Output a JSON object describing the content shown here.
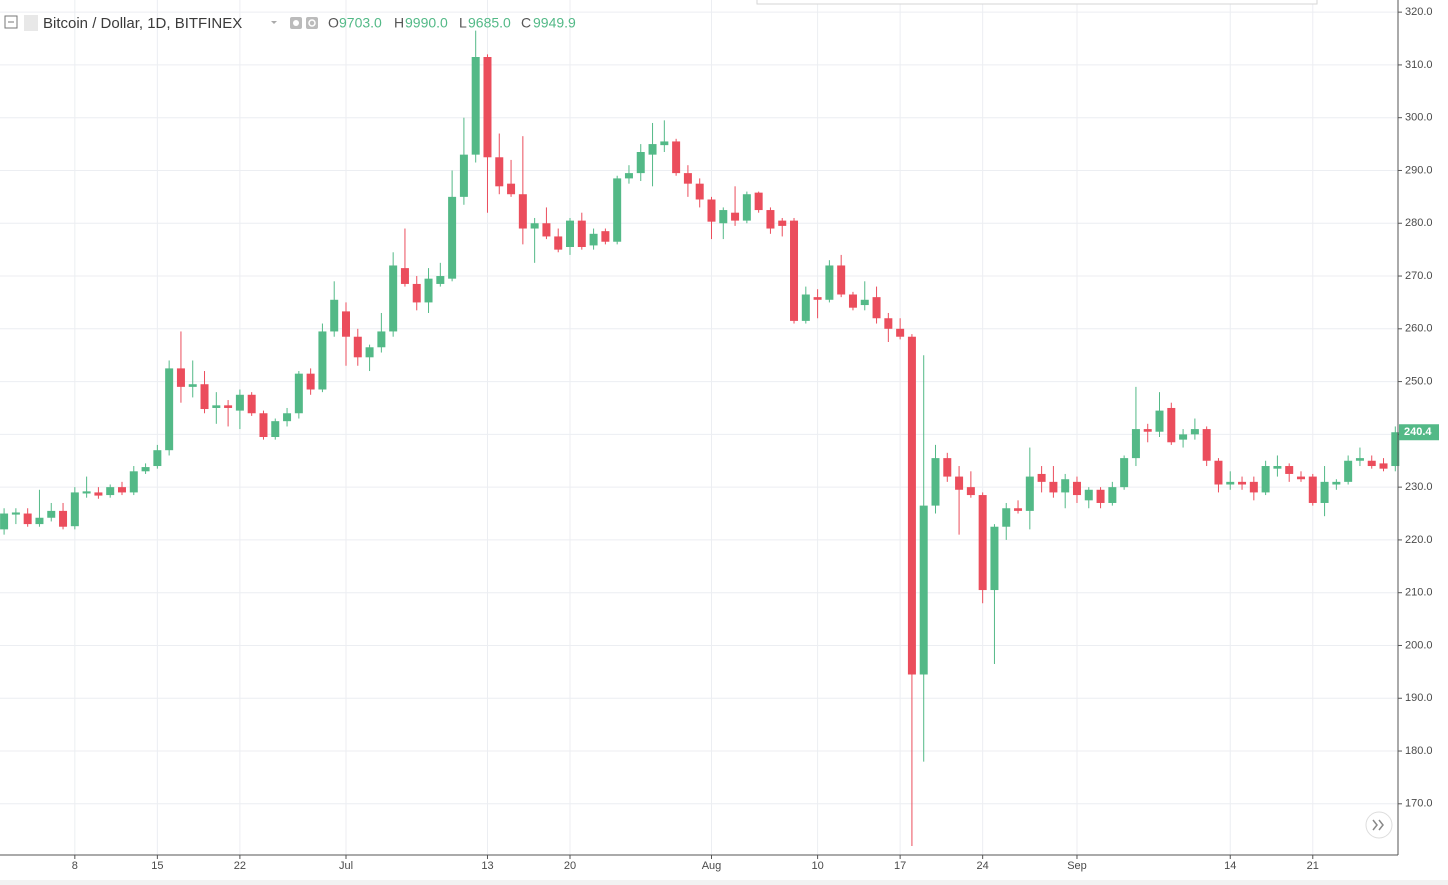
{
  "chart_data": {
    "type": "candlestick",
    "title": "Bitcoin / Dollar, 1D, BITFINEX",
    "header": {
      "o_label": "O",
      "o": "9703.0",
      "h_label": "H",
      "h": "9990.0",
      "l_label": "L",
      "l": "9685.0",
      "c_label": "C",
      "c": "9949.9"
    },
    "categories": [
      null,
      null,
      null,
      null,
      null,
      null,
      "8",
      null,
      null,
      null,
      null,
      null,
      null,
      "15",
      null,
      null,
      null,
      null,
      null,
      null,
      "22",
      null,
      null,
      null,
      null,
      null,
      null,
      null,
      null,
      "Jul",
      null,
      null,
      null,
      null,
      null,
      null,
      null,
      null,
      null,
      null,
      null,
      "13",
      null,
      null,
      null,
      null,
      null,
      null,
      "20",
      null,
      null,
      null,
      null,
      null,
      null,
      null,
      null,
      null,
      null,
      null,
      "Aug",
      null,
      null,
      null,
      null,
      null,
      null,
      null,
      null,
      "10",
      null,
      null,
      null,
      null,
      null,
      null,
      "17",
      null,
      null,
      null,
      null,
      null,
      null,
      "24",
      null,
      null,
      null,
      null,
      null,
      null,
      null,
      "Sep",
      null,
      null,
      null,
      null,
      null,
      null,
      null,
      null,
      null,
      null,
      null,
      null,
      "14",
      null,
      null,
      null,
      null,
      null,
      null,
      "21",
      null,
      null,
      null,
      null,
      null,
      null,
      null
    ],
    "open": [
      222,
      224.8,
      225,
      223,
      224.2,
      225.5,
      222.6,
      228.8,
      229,
      228.5,
      230,
      229,
      233,
      234,
      237,
      252.5,
      249,
      249.5,
      245,
      245.5,
      244.5,
      247.5,
      244,
      239.5,
      242.5,
      244,
      251.5,
      248.5,
      259.5,
      263.3,
      258.5,
      254.6,
      256.5,
      259.5,
      271.5,
      268.5,
      265,
      268.5,
      269.5,
      285,
      293,
      311.5,
      292.5,
      287.5,
      285.5,
      279,
      280,
      277.5,
      275.5,
      280.5,
      275.8,
      278.5,
      276.5,
      288.5,
      289.5,
      293,
      294.8,
      295.5,
      289.5,
      287.5,
      284.5,
      280,
      282,
      280.5,
      285.8,
      282.5,
      280.5,
      280.5,
      261.5,
      266,
      265.5,
      272,
      266.5,
      264.5,
      266,
      262,
      260,
      258.5,
      194.5,
      226.5,
      235.5,
      232,
      230,
      228.5,
      210.5,
      222.5,
      226,
      225.5,
      232.5,
      231,
      229,
      231,
      227.5,
      229.5,
      227,
      230,
      235.5,
      241,
      240.5,
      245,
      239,
      240,
      241,
      235,
      230.5,
      231,
      231,
      229,
      233.5,
      234,
      232,
      232,
      227,
      230.5,
      231,
      235,
      235,
      234.5,
      234
    ],
    "high": [
      226,
      226,
      226,
      229.5,
      227,
      227,
      230,
      232,
      230,
      230.5,
      231,
      234,
      234.5,
      238,
      254,
      259.5,
      254,
      252,
      248,
      246.5,
      248.5,
      248,
      244.5,
      243,
      245,
      252,
      252.5,
      261,
      269,
      265,
      260,
      257,
      263,
      274.5,
      279,
      270,
      271.5,
      272.5,
      290,
      300,
      316.5,
      312,
      297,
      292,
      296.5,
      281,
      283,
      279,
      281,
      282,
      279,
      279,
      289,
      291,
      295,
      299,
      299.5,
      296,
      291,
      288.5,
      285,
      283,
      287,
      286,
      286,
      283,
      281,
      281,
      268,
      267.5,
      273,
      274,
      267,
      269,
      268,
      263,
      262,
      259,
      255,
      238,
      236.5,
      234,
      233,
      229,
      223,
      227,
      227.5,
      237.5,
      234,
      234,
      232.5,
      232,
      230,
      230,
      231,
      236,
      249,
      242,
      248,
      246,
      241,
      243,
      241.5,
      235.5,
      233,
      232,
      232,
      235,
      236,
      234.5,
      233,
      232.5,
      234,
      231.5,
      236,
      237.5,
      236,
      235.5,
      241.5
    ],
    "low": [
      221,
      223,
      222.5,
      222.5,
      223.5,
      222,
      222,
      228,
      227.8,
      228,
      228.5,
      228.5,
      232.5,
      233.5,
      236,
      246,
      247,
      244,
      242,
      241.5,
      241,
      243.5,
      239,
      239,
      241.5,
      243,
      247.5,
      248,
      258.5,
      253,
      253,
      252,
      255.5,
      258.5,
      268,
      263.5,
      263,
      268,
      269,
      283.5,
      291.5,
      282,
      285.5,
      285,
      276,
      272.5,
      277,
      274.5,
      274,
      275,
      275,
      276,
      276,
      287.5,
      288,
      287,
      293.5,
      289,
      285,
      283,
      277,
      277,
      279.5,
      280,
      282,
      278,
      277.5,
      261,
      261,
      262,
      265,
      266,
      263.5,
      263.5,
      261,
      257.5,
      258,
      162,
      178,
      225,
      231,
      221,
      228,
      208,
      196.5,
      220,
      225,
      222,
      229,
      228,
      226,
      227,
      226,
      226,
      226.5,
      229.5,
      234,
      238.5,
      239.5,
      238,
      237.5,
      239,
      234,
      229,
      229.5,
      229.5,
      227.5,
      228.5,
      232,
      231,
      231,
      226.5,
      224.5,
      229.5,
      230.5,
      234,
      233.5,
      233,
      233
    ],
    "close": [
      225,
      225.2,
      223,
      224.2,
      225.5,
      222.5,
      229,
      229.2,
      228.4,
      230,
      229,
      233,
      233.8,
      237,
      252.5,
      249,
      249.5,
      244.8,
      245.5,
      245,
      247.5,
      244,
      239.5,
      242.5,
      244,
      251.5,
      248.5,
      259.5,
      265.5,
      258.5,
      254.6,
      256.5,
      259.5,
      272,
      268.5,
      265,
      269.5,
      270,
      285,
      293,
      311.5,
      292.5,
      287,
      285.5,
      279,
      280,
      277.5,
      275,
      280.5,
      275.5,
      278,
      276.5,
      288.5,
      289.5,
      293.5,
      295,
      295.5,
      289.5,
      287.5,
      284.5,
      280.3,
      282.5,
      280.5,
      285.5,
      282.5,
      279,
      279.5,
      261.5,
      266.5,
      265.5,
      272,
      266.5,
      264,
      265.5,
      262,
      260,
      258.5,
      194.5,
      226.5,
      235.5,
      232,
      229.5,
      228.5,
      210.5,
      222.5,
      226,
      225.5,
      232,
      231,
      229,
      231.5,
      228.5,
      229.5,
      227,
      230,
      235.5,
      241,
      240.5,
      244.5,
      238.5,
      240,
      241,
      235,
      230.5,
      231,
      230.5,
      229,
      234,
      234,
      232.5,
      231.5,
      227,
      231,
      231,
      235,
      235.5,
      234,
      233.5,
      240.4
    ],
    "up_color": "#53b987",
    "down_color": "#eb4d5c",
    "ylim": [
      160.3,
      322.3
    ],
    "yticks": [
      {
        "value": 170,
        "label": "170.0"
      },
      {
        "value": 180,
        "label": "180.0"
      },
      {
        "value": 190,
        "label": "190.0"
      },
      {
        "value": 200,
        "label": "200.0"
      },
      {
        "value": 210,
        "label": "210.0"
      },
      {
        "value": 220,
        "label": "220.0"
      },
      {
        "value": 230,
        "label": "230.0"
      },
      {
        "value": 240,
        "label": "240.0"
      },
      {
        "value": 250,
        "label": "250.0"
      },
      {
        "value": 260,
        "label": "260.0"
      },
      {
        "value": 270,
        "label": "270.0"
      },
      {
        "value": 280,
        "label": "280.0"
      },
      {
        "value": 290,
        "label": "290.0"
      },
      {
        "value": 300,
        "label": "300.0"
      },
      {
        "value": 310,
        "label": "310.0"
      },
      {
        "value": 320,
        "label": "320.0"
      }
    ],
    "grid": true
  }
}
